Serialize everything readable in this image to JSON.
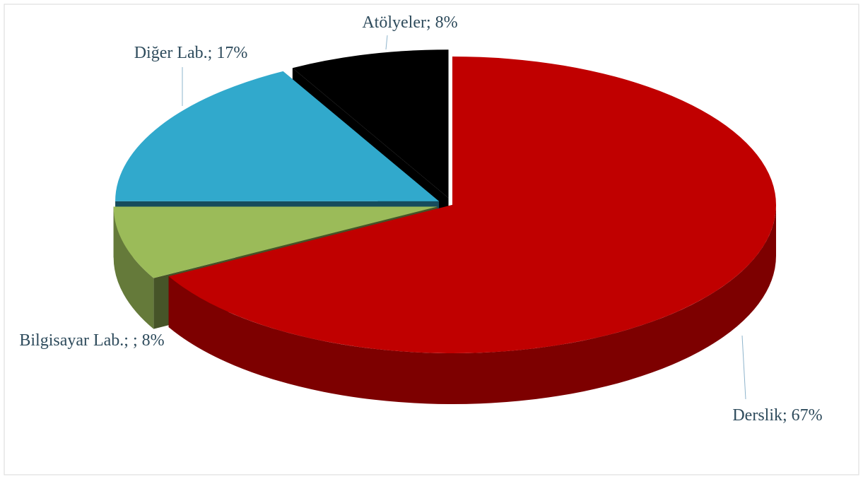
{
  "chart_data": {
    "type": "pie3d",
    "values": [
      67,
      8,
      17,
      8
    ],
    "value_labels": [
      "Derslik; 67%",
      "Bilgisayar Lab.; ; 8%",
      "Diğer Lab.; 17%",
      "Atölyeler; 8%"
    ],
    "colors": [
      "#c00000",
      "#9bbb59",
      "#31a9cc",
      "#000000"
    ]
  }
}
